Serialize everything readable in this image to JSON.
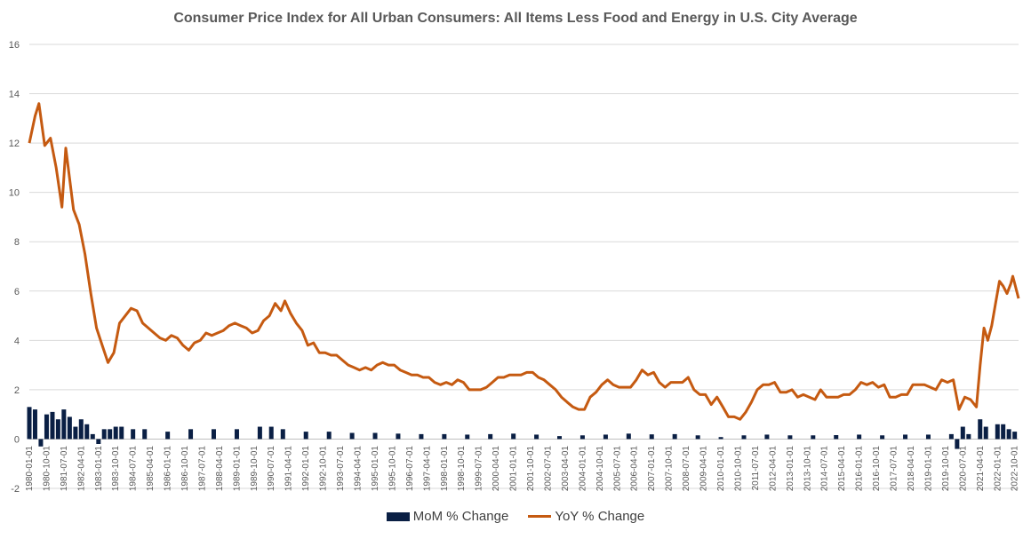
{
  "chart_data": {
    "type": "line",
    "title": "Consumer Price Index for All Urban Consumers: All Items Less Food and Energy in U.S. City Average",
    "xlabel": "",
    "ylabel": "",
    "ylim": [
      -2,
      16
    ],
    "yticks": [
      -2,
      0,
      2,
      4,
      6,
      8,
      10,
      12,
      14,
      16
    ],
    "xrange": [
      "1980-01-01",
      "2022-12-01"
    ],
    "xtick_labels": [
      "1980-01-01",
      "1980-10-01",
      "1981-07-01",
      "1982-04-01",
      "1983-01-01",
      "1983-10-01",
      "1984-07-01",
      "1985-04-01",
      "1986-01-01",
      "1986-10-01",
      "1987-07-01",
      "1988-04-01",
      "1989-01-01",
      "1989-10-01",
      "1990-07-01",
      "1991-04-01",
      "1992-01-01",
      "1992-10-01",
      "1993-07-01",
      "1994-04-01",
      "1995-01-01",
      "1995-10-01",
      "1996-07-01",
      "1997-04-01",
      "1998-01-01",
      "1998-10-01",
      "1999-07-01",
      "2000-04-01",
      "2001-01-01",
      "2001-10-01",
      "2002-07-01",
      "2003-04-01",
      "2004-01-01",
      "2004-10-01",
      "2005-07-01",
      "2006-04-01",
      "2007-01-01",
      "2007-10-01",
      "2008-07-01",
      "2009-04-01",
      "2010-01-01",
      "2010-10-01",
      "2011-07-01",
      "2012-04-01",
      "2013-01-01",
      "2013-10-01",
      "2014-07-01",
      "2015-04-01",
      "2016-01-01",
      "2016-10-01",
      "2017-07-01",
      "2018-04-01",
      "2019-01-01",
      "2019-10-01",
      "2020-07-01",
      "2021-04-01",
      "2022-01-01",
      "2022-10-01"
    ],
    "grid": true,
    "legend_position": "bottom",
    "series": [
      {
        "name": "MoM % Change",
        "type": "bar",
        "color": "#0a1f44",
        "points": [
          [
            "1980-01-01",
            1.3
          ],
          [
            "1980-04-01",
            1.2
          ],
          [
            "1980-07-01",
            -0.3
          ],
          [
            "1980-10-01",
            1.0
          ],
          [
            "1981-01-01",
            1.1
          ],
          [
            "1981-04-01",
            0.8
          ],
          [
            "1981-07-01",
            1.2
          ],
          [
            "1981-10-01",
            0.9
          ],
          [
            "1982-01-01",
            0.5
          ],
          [
            "1982-04-01",
            0.8
          ],
          [
            "1982-07-01",
            0.6
          ],
          [
            "1982-10-01",
            0.2
          ],
          [
            "1983-01-01",
            -0.2
          ],
          [
            "1983-04-01",
            0.4
          ],
          [
            "1983-07-01",
            0.4
          ],
          [
            "1983-10-01",
            0.5
          ],
          [
            "1984-01-01",
            0.5
          ],
          [
            "1984-07-01",
            0.4
          ],
          [
            "1985-01-01",
            0.4
          ],
          [
            "1986-01-01",
            0.3
          ],
          [
            "1987-01-01",
            0.4
          ],
          [
            "1988-01-01",
            0.4
          ],
          [
            "1989-01-01",
            0.4
          ],
          [
            "1990-01-01",
            0.5
          ],
          [
            "1990-07-01",
            0.5
          ],
          [
            "1991-01-01",
            0.4
          ],
          [
            "1992-01-01",
            0.3
          ],
          [
            "1993-01-01",
            0.3
          ],
          [
            "1994-01-01",
            0.25
          ],
          [
            "1995-01-01",
            0.25
          ],
          [
            "1996-01-01",
            0.22
          ],
          [
            "1997-01-01",
            0.2
          ],
          [
            "1998-01-01",
            0.2
          ],
          [
            "1999-01-01",
            0.18
          ],
          [
            "2000-01-01",
            0.2
          ],
          [
            "2001-01-01",
            0.22
          ],
          [
            "2002-01-01",
            0.18
          ],
          [
            "2003-01-01",
            0.12
          ],
          [
            "2004-01-01",
            0.15
          ],
          [
            "2005-01-01",
            0.18
          ],
          [
            "2006-01-01",
            0.22
          ],
          [
            "2007-01-01",
            0.19
          ],
          [
            "2008-01-01",
            0.2
          ],
          [
            "2009-01-01",
            0.15
          ],
          [
            "2010-01-01",
            0.08
          ],
          [
            "2011-01-01",
            0.15
          ],
          [
            "2012-01-01",
            0.18
          ],
          [
            "2013-01-01",
            0.15
          ],
          [
            "2014-01-01",
            0.15
          ],
          [
            "2015-01-01",
            0.16
          ],
          [
            "2016-01-01",
            0.18
          ],
          [
            "2017-01-01",
            0.15
          ],
          [
            "2018-01-01",
            0.18
          ],
          [
            "2019-01-01",
            0.18
          ],
          [
            "2020-01-01",
            0.2
          ],
          [
            "2020-04-01",
            -0.4
          ],
          [
            "2020-07-01",
            0.5
          ],
          [
            "2020-10-01",
            0.2
          ],
          [
            "2021-04-01",
            0.8
          ],
          [
            "2021-07-01",
            0.5
          ],
          [
            "2022-01-01",
            0.6
          ],
          [
            "2022-04-01",
            0.6
          ],
          [
            "2022-07-01",
            0.4
          ],
          [
            "2022-10-01",
            0.3
          ]
        ]
      },
      {
        "name": "YoY % Change",
        "type": "line",
        "color": "#c55a11",
        "points": [
          [
            "1980-01-01",
            12.0
          ],
          [
            "1980-04-01",
            13.1
          ],
          [
            "1980-06-01",
            13.6
          ],
          [
            "1980-09-01",
            11.9
          ],
          [
            "1980-12-01",
            12.2
          ],
          [
            "1981-03-01",
            11.0
          ],
          [
            "1981-06-01",
            9.4
          ],
          [
            "1981-08-01",
            11.8
          ],
          [
            "1981-12-01",
            9.3
          ],
          [
            "1982-03-01",
            8.7
          ],
          [
            "1982-06-01",
            7.5
          ],
          [
            "1982-09-01",
            5.9
          ],
          [
            "1982-12-01",
            4.5
          ],
          [
            "1983-03-01",
            3.8
          ],
          [
            "1983-06-01",
            3.1
          ],
          [
            "1983-09-01",
            3.5
          ],
          [
            "1983-12-01",
            4.7
          ],
          [
            "1984-03-01",
            5.0
          ],
          [
            "1984-06-01",
            5.3
          ],
          [
            "1984-09-01",
            5.2
          ],
          [
            "1984-12-01",
            4.7
          ],
          [
            "1985-03-01",
            4.5
          ],
          [
            "1985-06-01",
            4.3
          ],
          [
            "1985-09-01",
            4.1
          ],
          [
            "1985-12-01",
            4.0
          ],
          [
            "1986-03-01",
            4.2
          ],
          [
            "1986-06-01",
            4.1
          ],
          [
            "1986-09-01",
            3.8
          ],
          [
            "1986-12-01",
            3.6
          ],
          [
            "1987-03-01",
            3.9
          ],
          [
            "1987-06-01",
            4.0
          ],
          [
            "1987-09-01",
            4.3
          ],
          [
            "1987-12-01",
            4.2
          ],
          [
            "1988-03-01",
            4.3
          ],
          [
            "1988-06-01",
            4.4
          ],
          [
            "1988-09-01",
            4.6
          ],
          [
            "1988-12-01",
            4.7
          ],
          [
            "1989-03-01",
            4.6
          ],
          [
            "1989-06-01",
            4.5
          ],
          [
            "1989-09-01",
            4.3
          ],
          [
            "1989-12-01",
            4.4
          ],
          [
            "1990-03-01",
            4.8
          ],
          [
            "1990-06-01",
            5.0
          ],
          [
            "1990-09-01",
            5.5
          ],
          [
            "1990-12-01",
            5.2
          ],
          [
            "1991-02-01",
            5.6
          ],
          [
            "1991-05-01",
            5.1
          ],
          [
            "1991-08-01",
            4.7
          ],
          [
            "1991-11-01",
            4.4
          ],
          [
            "1992-02-01",
            3.8
          ],
          [
            "1992-05-01",
            3.9
          ],
          [
            "1992-08-01",
            3.5
          ],
          [
            "1992-11-01",
            3.5
          ],
          [
            "1993-02-01",
            3.4
          ],
          [
            "1993-05-01",
            3.4
          ],
          [
            "1993-08-01",
            3.2
          ],
          [
            "1993-11-01",
            3.0
          ],
          [
            "1994-02-01",
            2.9
          ],
          [
            "1994-05-01",
            2.8
          ],
          [
            "1994-08-01",
            2.9
          ],
          [
            "1994-11-01",
            2.8
          ],
          [
            "1995-02-01",
            3.0
          ],
          [
            "1995-05-01",
            3.1
          ],
          [
            "1995-08-01",
            3.0
          ],
          [
            "1995-11-01",
            3.0
          ],
          [
            "1996-02-01",
            2.8
          ],
          [
            "1996-05-01",
            2.7
          ],
          [
            "1996-08-01",
            2.6
          ],
          [
            "1996-11-01",
            2.6
          ],
          [
            "1997-02-01",
            2.5
          ],
          [
            "1997-05-01",
            2.5
          ],
          [
            "1997-08-01",
            2.3
          ],
          [
            "1997-11-01",
            2.2
          ],
          [
            "1998-02-01",
            2.3
          ],
          [
            "1998-05-01",
            2.2
          ],
          [
            "1998-08-01",
            2.4
          ],
          [
            "1998-11-01",
            2.3
          ],
          [
            "1999-02-01",
            2.0
          ],
          [
            "1999-05-01",
            2.0
          ],
          [
            "1999-08-01",
            2.0
          ],
          [
            "1999-11-01",
            2.1
          ],
          [
            "2000-02-01",
            2.3
          ],
          [
            "2000-05-01",
            2.5
          ],
          [
            "2000-08-01",
            2.5
          ],
          [
            "2000-11-01",
            2.6
          ],
          [
            "2001-02-01",
            2.6
          ],
          [
            "2001-05-01",
            2.6
          ],
          [
            "2001-08-01",
            2.7
          ],
          [
            "2001-11-01",
            2.7
          ],
          [
            "2002-02-01",
            2.5
          ],
          [
            "2002-05-01",
            2.4
          ],
          [
            "2002-08-01",
            2.2
          ],
          [
            "2002-11-01",
            2.0
          ],
          [
            "2003-02-01",
            1.7
          ],
          [
            "2003-05-01",
            1.5
          ],
          [
            "2003-08-01",
            1.3
          ],
          [
            "2003-11-01",
            1.2
          ],
          [
            "2004-02-01",
            1.2
          ],
          [
            "2004-05-01",
            1.7
          ],
          [
            "2004-08-01",
            1.9
          ],
          [
            "2004-11-01",
            2.2
          ],
          [
            "2005-02-01",
            2.4
          ],
          [
            "2005-05-01",
            2.2
          ],
          [
            "2005-08-01",
            2.1
          ],
          [
            "2005-11-01",
            2.1
          ],
          [
            "2006-02-01",
            2.1
          ],
          [
            "2006-05-01",
            2.4
          ],
          [
            "2006-08-01",
            2.8
          ],
          [
            "2006-11-01",
            2.6
          ],
          [
            "2007-02-01",
            2.7
          ],
          [
            "2007-05-01",
            2.3
          ],
          [
            "2007-08-01",
            2.1
          ],
          [
            "2007-11-01",
            2.3
          ],
          [
            "2008-02-01",
            2.3
          ],
          [
            "2008-05-01",
            2.3
          ],
          [
            "2008-08-01",
            2.5
          ],
          [
            "2008-11-01",
            2.0
          ],
          [
            "2009-02-01",
            1.8
          ],
          [
            "2009-05-01",
            1.8
          ],
          [
            "2009-08-01",
            1.4
          ],
          [
            "2009-11-01",
            1.7
          ],
          [
            "2010-02-01",
            1.3
          ],
          [
            "2010-05-01",
            0.9
          ],
          [
            "2010-08-01",
            0.9
          ],
          [
            "2010-11-01",
            0.8
          ],
          [
            "2011-02-01",
            1.1
          ],
          [
            "2011-05-01",
            1.5
          ],
          [
            "2011-08-01",
            2.0
          ],
          [
            "2011-11-01",
            2.2
          ],
          [
            "2012-02-01",
            2.2
          ],
          [
            "2012-05-01",
            2.3
          ],
          [
            "2012-08-01",
            1.9
          ],
          [
            "2012-11-01",
            1.9
          ],
          [
            "2013-02-01",
            2.0
          ],
          [
            "2013-05-01",
            1.7
          ],
          [
            "2013-08-01",
            1.8
          ],
          [
            "2013-11-01",
            1.7
          ],
          [
            "2014-02-01",
            1.6
          ],
          [
            "2014-05-01",
            2.0
          ],
          [
            "2014-08-01",
            1.7
          ],
          [
            "2014-11-01",
            1.7
          ],
          [
            "2015-02-01",
            1.7
          ],
          [
            "2015-05-01",
            1.8
          ],
          [
            "2015-08-01",
            1.8
          ],
          [
            "2015-11-01",
            2.0
          ],
          [
            "2016-02-01",
            2.3
          ],
          [
            "2016-05-01",
            2.2
          ],
          [
            "2016-08-01",
            2.3
          ],
          [
            "2016-11-01",
            2.1
          ],
          [
            "2017-02-01",
            2.2
          ],
          [
            "2017-05-01",
            1.7
          ],
          [
            "2017-08-01",
            1.7
          ],
          [
            "2017-11-01",
            1.8
          ],
          [
            "2018-02-01",
            1.8
          ],
          [
            "2018-05-01",
            2.2
          ],
          [
            "2018-08-01",
            2.2
          ],
          [
            "2018-11-01",
            2.2
          ],
          [
            "2019-02-01",
            2.1
          ],
          [
            "2019-05-01",
            2.0
          ],
          [
            "2019-08-01",
            2.4
          ],
          [
            "2019-11-01",
            2.3
          ],
          [
            "2020-02-01",
            2.4
          ],
          [
            "2020-05-01",
            1.2
          ],
          [
            "2020-08-01",
            1.7
          ],
          [
            "2020-11-01",
            1.6
          ],
          [
            "2021-02-01",
            1.3
          ],
          [
            "2021-04-01",
            3.0
          ],
          [
            "2021-06-01",
            4.5
          ],
          [
            "2021-08-01",
            4.0
          ],
          [
            "2021-10-01",
            4.6
          ],
          [
            "2021-12-01",
            5.5
          ],
          [
            "2022-02-01",
            6.4
          ],
          [
            "2022-04-01",
            6.2
          ],
          [
            "2022-06-01",
            5.9
          ],
          [
            "2022-08-01",
            6.3
          ],
          [
            "2022-09-01",
            6.6
          ],
          [
            "2022-10-01",
            6.3
          ],
          [
            "2022-12-01",
            5.7
          ]
        ]
      }
    ]
  }
}
